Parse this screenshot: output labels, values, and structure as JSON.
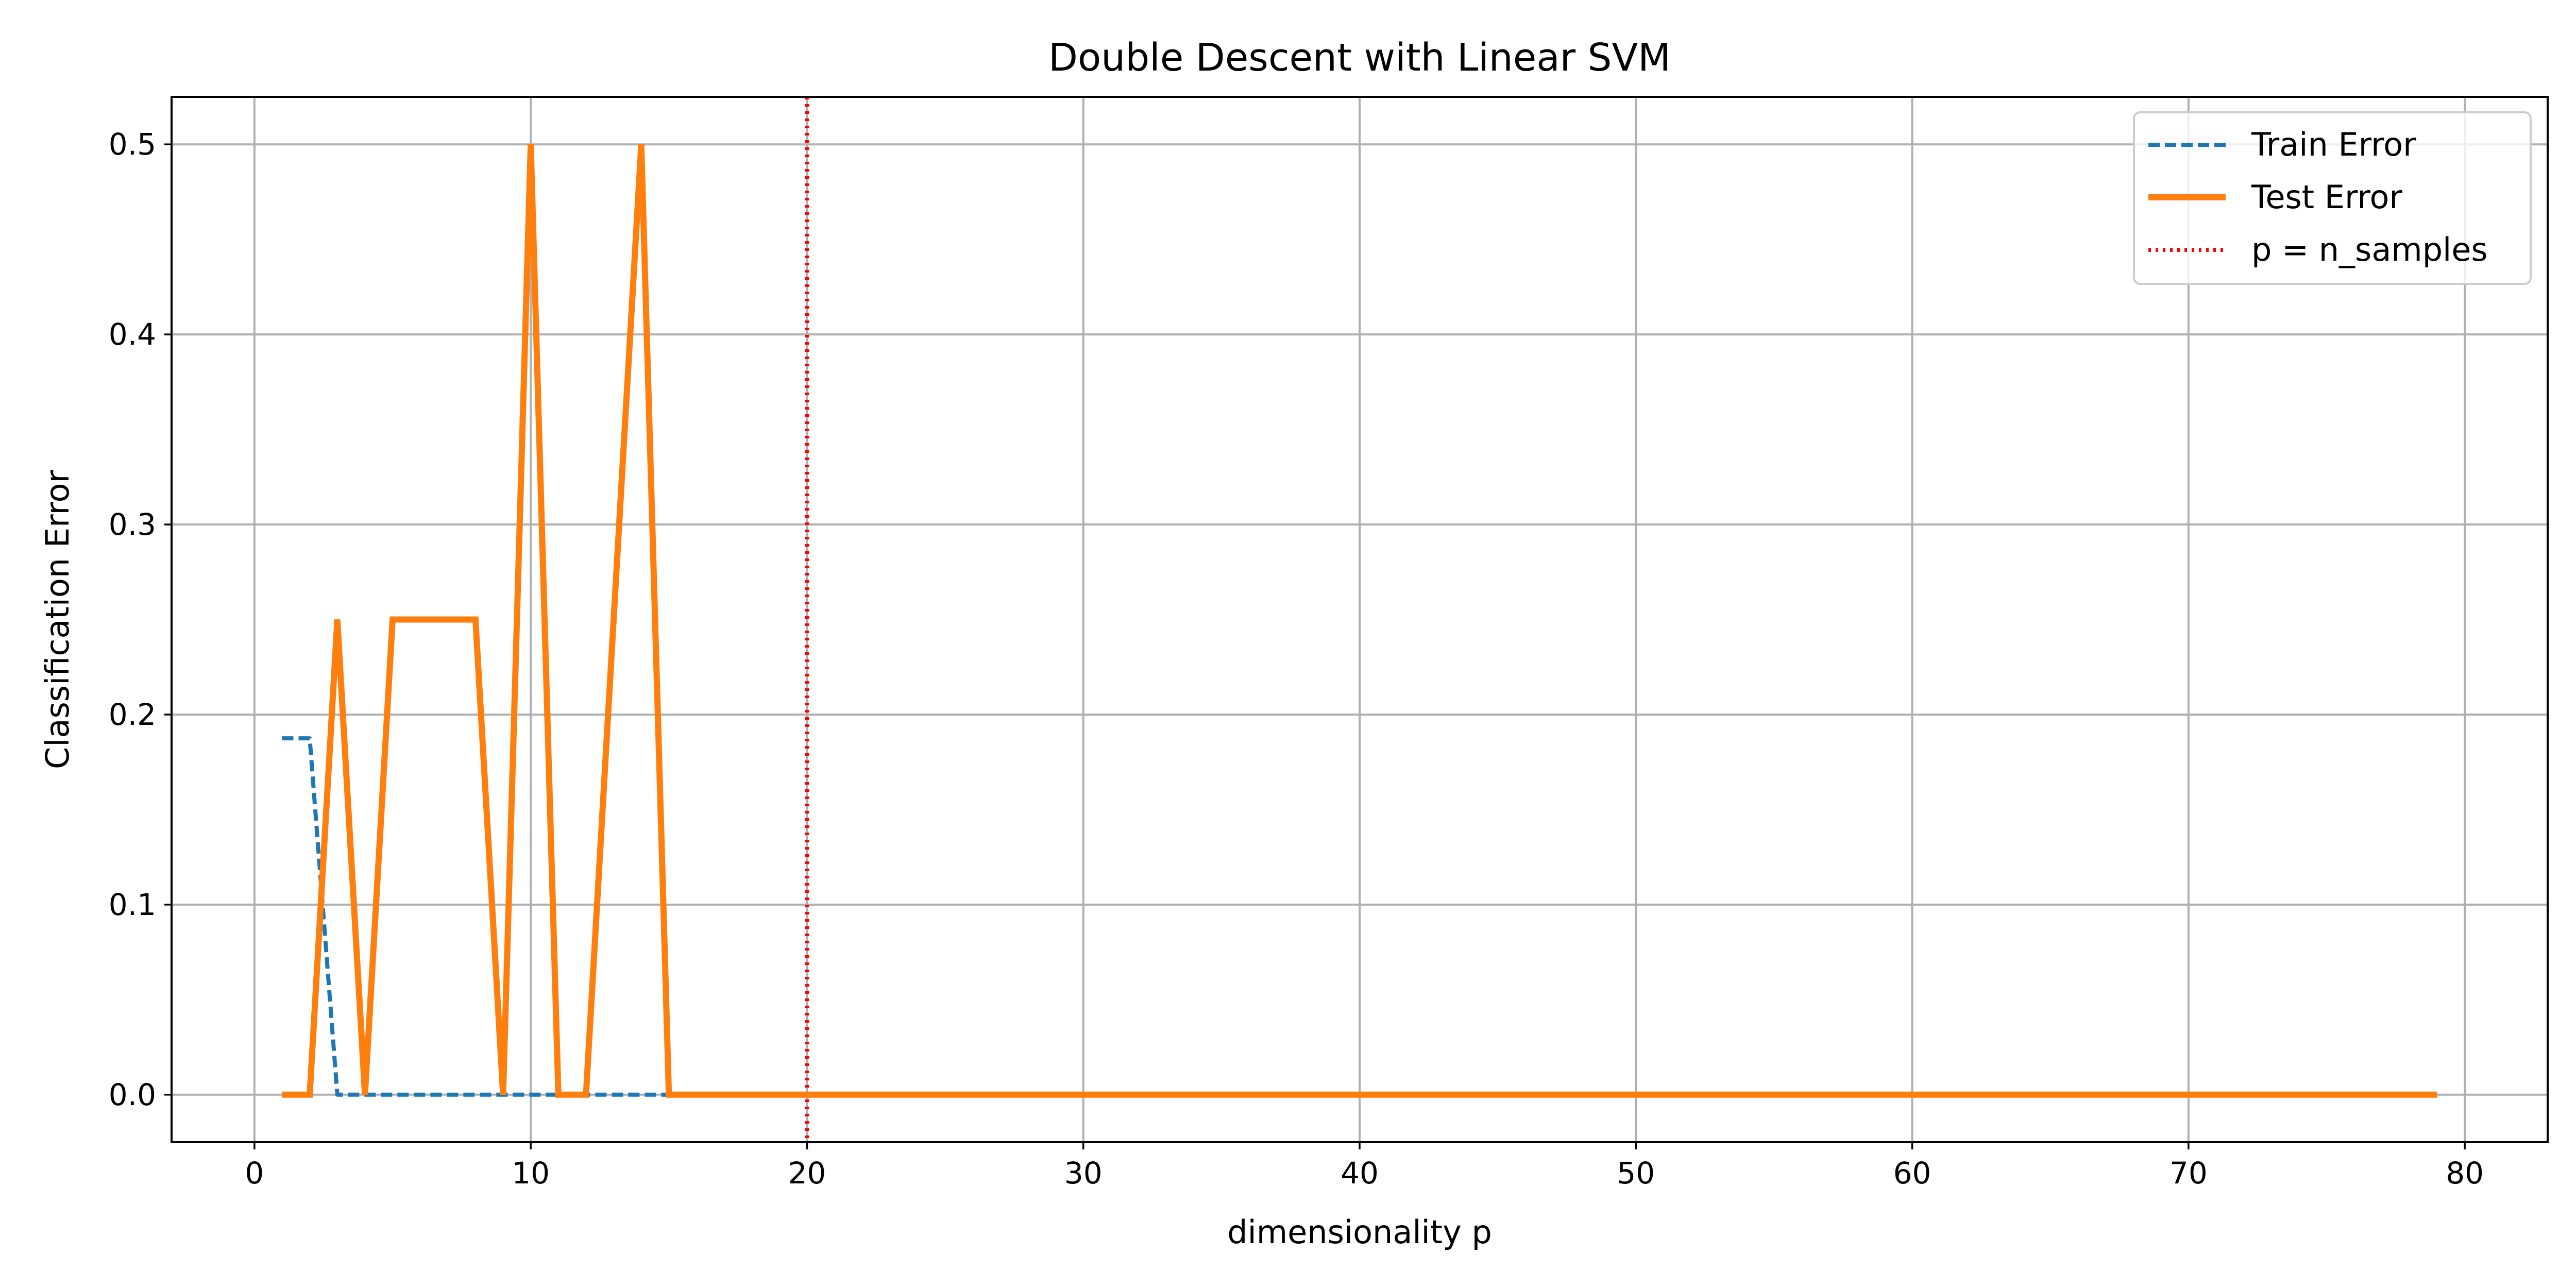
{
  "chart_data": {
    "type": "line",
    "title": "Double Descent with Linear SVM",
    "xlabel": "dimensionality p",
    "ylabel": "Classification Error",
    "xlim": [
      -3,
      83
    ],
    "ylim": [
      -0.025,
      0.525
    ],
    "xticks": [
      0,
      10,
      20,
      30,
      40,
      50,
      60,
      70,
      80
    ],
    "xtick_labels": [
      "0",
      "10",
      "20",
      "30",
      "40",
      "50",
      "60",
      "70",
      "80"
    ],
    "yticks": [
      0.0,
      0.1,
      0.2,
      0.3,
      0.4,
      0.5
    ],
    "ytick_labels": [
      "0.0",
      "0.1",
      "0.2",
      "0.3",
      "0.4",
      "0.5"
    ],
    "grid": true,
    "legend_position": "top-right",
    "series": [
      {
        "name": "Train Error",
        "style": "dashed",
        "color": "#1f77b4",
        "x": [
          1,
          2,
          3,
          4,
          5,
          6,
          7,
          8,
          9,
          10,
          11,
          12,
          13,
          14,
          15
        ],
        "y": [
          0.1875,
          0.1875,
          0.0,
          0.0,
          0.0,
          0.0,
          0.0,
          0.0,
          0.0,
          0.0,
          0.0,
          0.0,
          0.0,
          0.0,
          0.0
        ]
      },
      {
        "name": "Test Error",
        "style": "solid",
        "color": "#ff7f0e",
        "x": [
          1,
          2,
          3,
          4,
          5,
          6,
          7,
          8,
          9,
          10,
          11,
          12,
          13,
          14,
          15,
          79
        ],
        "y": [
          0.0,
          0.0,
          0.25,
          0.0,
          0.25,
          0.25,
          0.25,
          0.25,
          0.0,
          0.5,
          0.0,
          0.0,
          0.25,
          0.5,
          0.0,
          0.0
        ]
      }
    ],
    "vlines": [
      {
        "name": "p = n_samples",
        "x": 20,
        "style": "dotted",
        "color": "#ff0000"
      }
    ]
  }
}
